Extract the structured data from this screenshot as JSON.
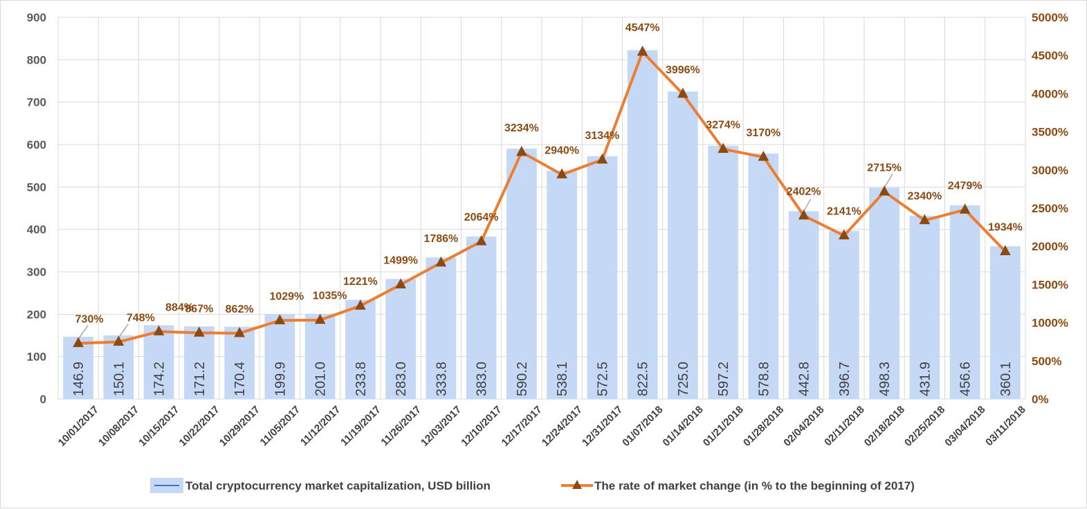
{
  "chart_data": {
    "type": "bar+line",
    "categories": [
      "10/01/2017",
      "10/08/2017",
      "10/15/2017",
      "10/22/2017",
      "10/29/2017",
      "11/05/2017",
      "11/12/2017",
      "11/19/2017",
      "11/26/2017",
      "12/03/2017",
      "12/10/2017",
      "12/17/2017",
      "12/24/2017",
      "12/31/2017",
      "01/07/2018",
      "01/14/2018",
      "01/21/2018",
      "01/28/2018",
      "02/04/2018",
      "02/11/2018",
      "02/18/2018",
      "02/25/2018",
      "03/04/2018",
      "03/11/2018"
    ],
    "series": [
      {
        "name": "Total cryptocurrency market capitalization, USD billion",
        "type": "bar",
        "axis": "left",
        "values": [
          146.9,
          150.1,
          174.2,
          171.2,
          170.4,
          199.9,
          201.0,
          233.8,
          283.0,
          333.8,
          383.0,
          590.2,
          538.1,
          572.5,
          822.5,
          725.0,
          597.2,
          578.8,
          442.8,
          396.7,
          498.3,
          431.9,
          456.6,
          360.1
        ],
        "labels": [
          "146.9",
          "150.1",
          "174.2",
          "171.2",
          "170.4",
          "199.9",
          "201.0",
          "233.8",
          "283.0",
          "333.8",
          "383.0",
          "590.2",
          "538.1",
          "572.5",
          "822.5",
          "725.0",
          "597.2",
          "578.8",
          "442.8",
          "396.7",
          "498.3",
          "431.9",
          "456.6",
          "360.1"
        ],
        "color": "#c5d8f5"
      },
      {
        "name": "The rate of market change (in % to the beginning of 2017)",
        "type": "line",
        "axis": "right",
        "values": [
          730,
          748,
          884,
          867,
          862,
          1029,
          1035,
          1221,
          1499,
          1786,
          2064,
          3234,
          2940,
          3134,
          4547,
          3996,
          3274,
          3170,
          2402,
          2141,
          2715,
          2340,
          2479,
          1934
        ],
        "labels": [
          "730%",
          "748%",
          "884%",
          "867%",
          "862%",
          "1029%",
          "1035%",
          "1221%",
          "1499%",
          "1786%",
          "2064%",
          "3234%",
          "2940%",
          "3134%",
          "4547%",
          "3996%",
          "3274%",
          "3170%",
          "2402%",
          "2141%",
          "2715%",
          "2340%",
          "2479%",
          "1934%"
        ],
        "color": "#ed7d31",
        "marker_color": "#8a4a12"
      }
    ],
    "y_left": {
      "range": [
        0,
        900
      ],
      "ticks": [
        "0",
        "100",
        "200",
        "300",
        "400",
        "500",
        "600",
        "700",
        "800",
        "900"
      ]
    },
    "y_right": {
      "range": [
        0,
        5000
      ],
      "ticks": [
        "0%",
        "500%",
        "1000%",
        "1500%",
        "2000%",
        "2500%",
        "3000%",
        "3500%",
        "4000%",
        "4500%",
        "5000%"
      ]
    },
    "grid": "vertical+horizontal",
    "legend_position": "bottom"
  }
}
